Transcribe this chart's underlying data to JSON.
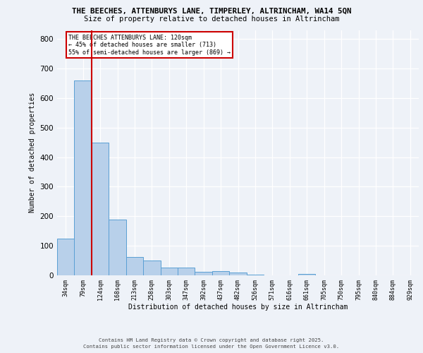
{
  "title_line1": "THE BEECHES, ATTENBURYS LANE, TIMPERLEY, ALTRINCHAM, WA14 5QN",
  "title_line2": "Size of property relative to detached houses in Altrincham",
  "xlabel": "Distribution of detached houses by size in Altrincham",
  "ylabel": "Number of detached properties",
  "bar_labels": [
    "34sqm",
    "79sqm",
    "124sqm",
    "168sqm",
    "213sqm",
    "258sqm",
    "303sqm",
    "347sqm",
    "392sqm",
    "437sqm",
    "482sqm",
    "526sqm",
    "571sqm",
    "616sqm",
    "661sqm",
    "705sqm",
    "750sqm",
    "795sqm",
    "840sqm",
    "884sqm",
    "929sqm"
  ],
  "values": [
    125,
    660,
    450,
    188,
    62,
    50,
    27,
    27,
    13,
    15,
    10,
    2,
    0,
    0,
    5,
    0,
    0,
    0,
    0,
    0,
    0
  ],
  "bar_color": "#b8d0ea",
  "bar_edge_color": "#5a9fd4",
  "property_line_color": "#cc0000",
  "property_line_bar_idx": 1,
  "annotation_text": "THE BEECHES ATTENBURYS LANE: 120sqm\n← 45% of detached houses are smaller (713)\n55% of semi-detached houses are larger (869) →",
  "annotation_box_facecolor": "#ffffff",
  "annotation_box_edgecolor": "#cc0000",
  "bg_color": "#eef2f8",
  "grid_color": "#ffffff",
  "yticks": [
    0,
    100,
    200,
    300,
    400,
    500,
    600,
    700,
    800
  ],
  "ylim": [
    0,
    830
  ],
  "footer_line1": "Contains HM Land Registry data © Crown copyright and database right 2025.",
  "footer_line2": "Contains public sector information licensed under the Open Government Licence v3.0."
}
